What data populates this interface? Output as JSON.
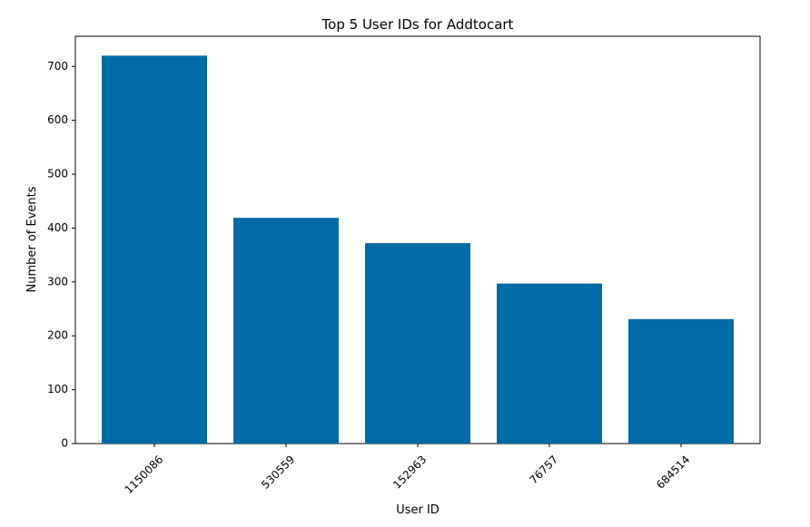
{
  "chart_data": {
    "type": "bar",
    "title": "Top 5 User IDs for Addtocart",
    "xlabel": "User ID",
    "ylabel": "Number of Events",
    "categories": [
      "1150086",
      "530559",
      "152963",
      "76757",
      "684514"
    ],
    "values": [
      720,
      419,
      372,
      297,
      231
    ],
    "ylim": [
      0,
      756
    ],
    "yticks": [
      0,
      100,
      200,
      300,
      400,
      500,
      600,
      700
    ],
    "xtick_rotation_deg": 45,
    "bar_color": "#006ba4",
    "grid": false,
    "legend": "none"
  }
}
